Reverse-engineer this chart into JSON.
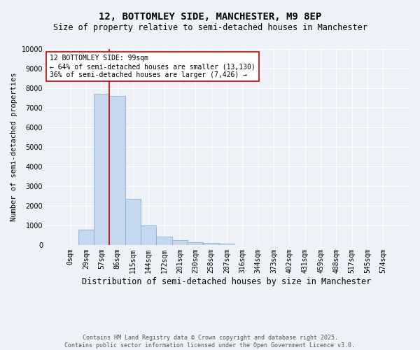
{
  "title": "12, BOTTOMLEY SIDE, MANCHESTER, M9 8EP",
  "subtitle": "Size of property relative to semi-detached houses in Manchester",
  "xlabel": "Distribution of semi-detached houses by size in Manchester",
  "ylabel": "Number of semi-detached properties",
  "categories": [
    "0sqm",
    "29sqm",
    "57sqm",
    "86sqm",
    "115sqm",
    "144sqm",
    "172sqm",
    "201sqm",
    "230sqm",
    "258sqm",
    "287sqm",
    "316sqm",
    "344sqm",
    "373sqm",
    "402sqm",
    "431sqm",
    "459sqm",
    "488sqm",
    "517sqm",
    "545sqm",
    "574sqm"
  ],
  "values": [
    0,
    780,
    7720,
    7600,
    2350,
    1010,
    430,
    240,
    130,
    90,
    70,
    10,
    10,
    10,
    0,
    0,
    0,
    0,
    0,
    0,
    0
  ],
  "bar_color": "#c5d8f0",
  "bar_edge_color": "#7ba7c7",
  "annotation_box_text": "12 BOTTOMLEY SIDE: 99sqm\n← 64% of semi-detached houses are smaller (13,130)\n36% of semi-detached houses are larger (7,426) →",
  "annotation_box_color": "#ffffff",
  "annotation_box_edge_color": "#cc0000",
  "vline_color": "#cc0000",
  "vline_x_index": 3,
  "ylim": [
    0,
    10000
  ],
  "yticks": [
    0,
    1000,
    2000,
    3000,
    4000,
    5000,
    6000,
    7000,
    8000,
    9000,
    10000
  ],
  "background_color": "#eef2f8",
  "grid_color": "#ffffff",
  "footer_text": "Contains HM Land Registry data © Crown copyright and database right 2025.\nContains public sector information licensed under the Open Government Licence v3.0.",
  "title_fontsize": 10,
  "subtitle_fontsize": 8.5,
  "xlabel_fontsize": 8.5,
  "ylabel_fontsize": 7.5,
  "tick_fontsize": 7,
  "annotation_fontsize": 7,
  "footer_fontsize": 6
}
